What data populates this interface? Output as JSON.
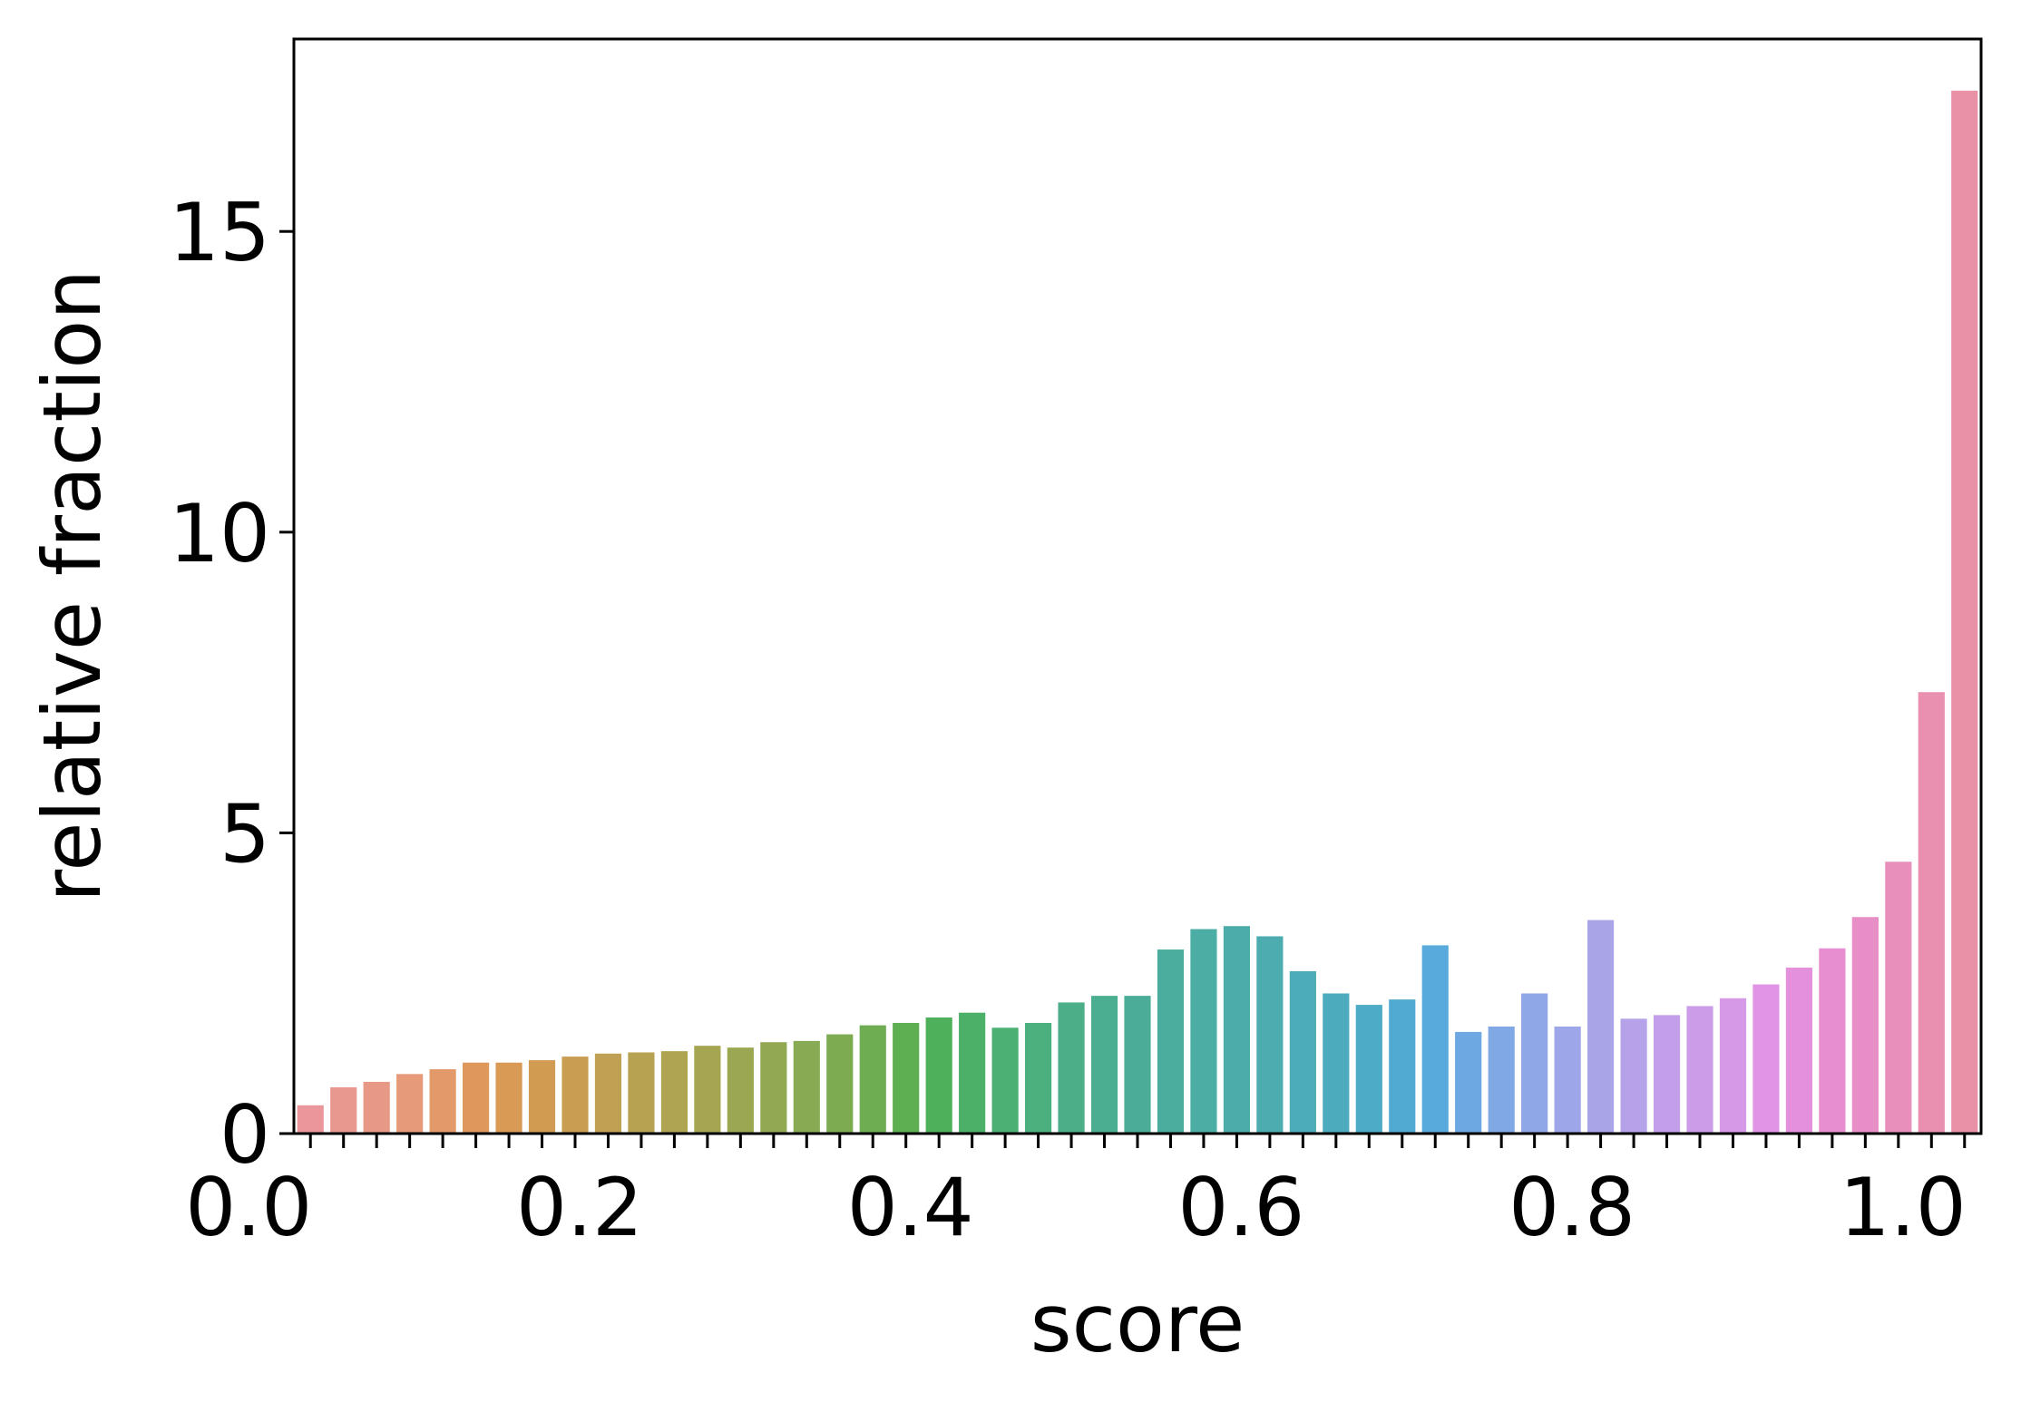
{
  "chart_data": {
    "type": "bar",
    "x_label": "score",
    "y_label": "relative fraction",
    "categories": [
      "0.0",
      null,
      null,
      null,
      null,
      null,
      null,
      null,
      null,
      null,
      "0.2",
      null,
      null,
      null,
      null,
      null,
      null,
      null,
      null,
      null,
      "0.4",
      null,
      null,
      null,
      null,
      null,
      null,
      null,
      null,
      null,
      "0.6",
      null,
      null,
      null,
      null,
      null,
      null,
      null,
      null,
      null,
      "0.8",
      null,
      null,
      null,
      null,
      null,
      null,
      null,
      null,
      null,
      "1.0"
    ],
    "values": [
      0.47,
      0.77,
      0.86,
      0.99,
      1.07,
      1.18,
      1.18,
      1.22,
      1.28,
      1.33,
      1.35,
      1.37,
      1.46,
      1.43,
      1.52,
      1.54,
      1.65,
      1.8,
      1.84,
      1.93,
      2.01,
      1.76,
      1.84,
      2.18,
      2.29,
      2.29,
      3.06,
      3.4,
      3.45,
      3.28,
      2.7,
      2.33,
      2.14,
      2.23,
      3.13,
      1.69,
      1.78,
      2.33,
      1.78,
      3.55,
      1.91,
      1.97,
      2.12,
      2.25,
      2.48,
      2.76,
      3.08,
      3.6,
      4.52,
      7.34,
      17.34
    ],
    "colors": [
      "#ea969a",
      "#e99890",
      "#e89985",
      "#e69a79",
      "#e39a6b",
      "#de985c",
      "#d89a55",
      "#d19c52",
      "#c99e52",
      "#c0a052",
      "#b7a252",
      "#aea452",
      "#a5a552",
      "#9ca752",
      "#92a852",
      "#88aa52",
      "#7cab52",
      "#6ead52",
      "#5daf52",
      "#4eb05a",
      "#4db068",
      "#4cb074",
      "#4caf7e",
      "#4cae88",
      "#4bae90",
      "#4bad97",
      "#4bad9d",
      "#4bada3",
      "#4bacaa",
      "#4cacb0",
      "#4cacb7",
      "#4dabbe",
      "#4eabc7",
      "#50aad1",
      "#58a9dc",
      "#6ea8e2",
      "#80a8e5",
      "#8fa7e7",
      "#9ca6e8",
      "#a9a4e8",
      "#b6a2e8",
      "#c29fe8",
      "#cc9ce8",
      "#d699e8",
      "#df94e6",
      "#e490dc",
      "#e78ed1",
      "#e88ec6",
      "#e98fbb",
      "#e990b1",
      "#e992a7"
    ],
    "ylim": [
      0,
      18.2
    ],
    "yticks": [
      0,
      5,
      10,
      15
    ],
    "grid": false
  }
}
